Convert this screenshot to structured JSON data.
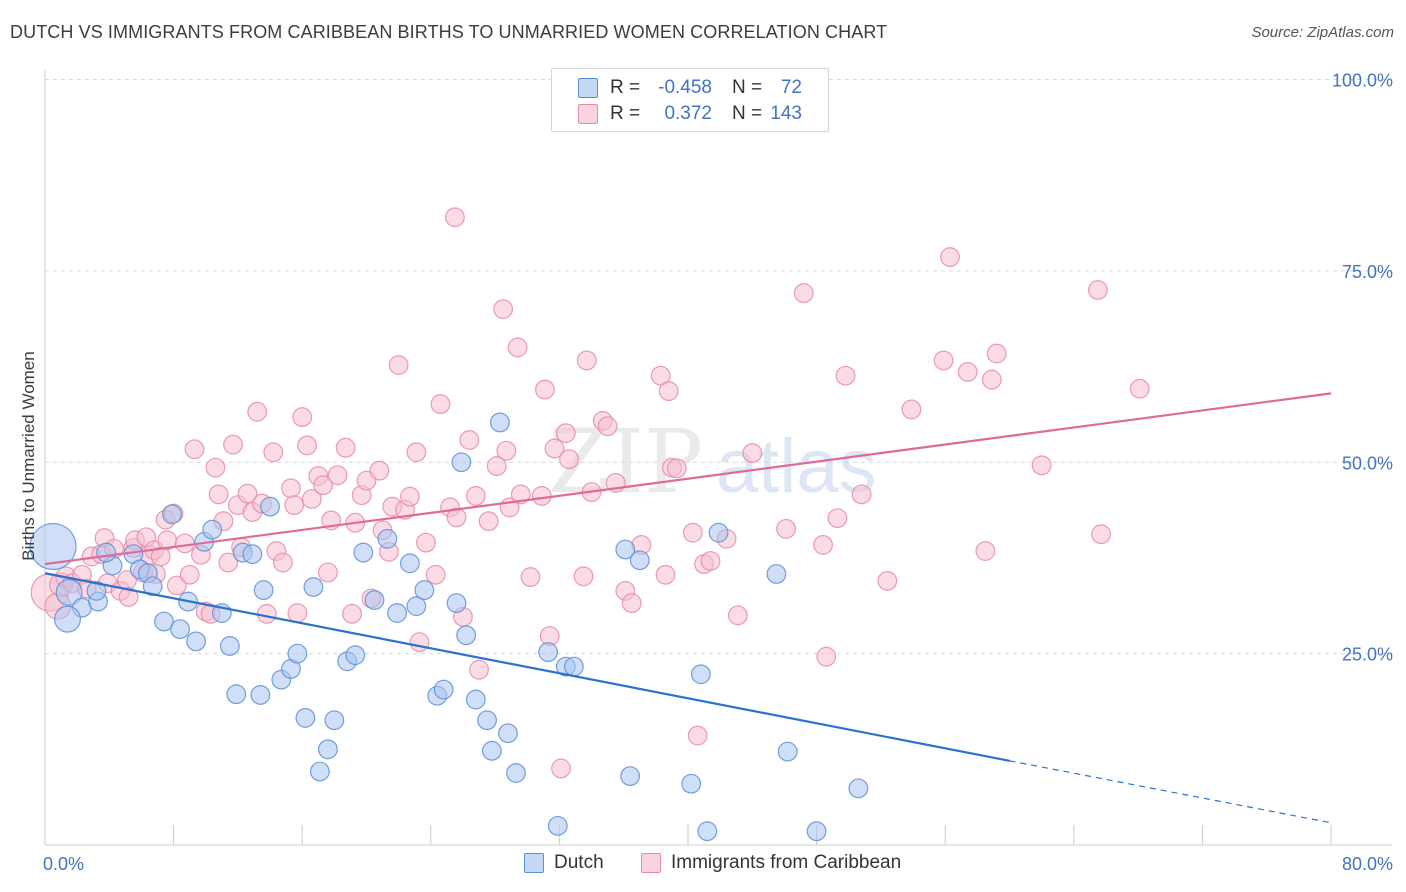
{
  "header": {
    "title": "DUTCH VS IMMIGRANTS FROM CARIBBEAN BIRTHS TO UNMARRIED WOMEN CORRELATION CHART",
    "source": "Source: ZipAtlas.com"
  },
  "legend": {
    "rows": [
      {
        "r_label": "R =",
        "r_value": "-0.458",
        "n_label": "N =",
        "n_value": "72"
      },
      {
        "r_label": "R =",
        "r_value": "0.372",
        "n_label": "N =",
        "n_value": "143"
      }
    ]
  },
  "bottom_legend": {
    "dutch": "Dutch",
    "caribbean": "Immigrants from Caribbean"
  },
  "watermark": {
    "zip": "ZIP",
    "atlas": "atlas"
  },
  "colors": {
    "dutch_fill": "#a9c4f0",
    "dutch_stroke": "#5b8fd6",
    "dutch_line": "#2a72d0",
    "carib_fill": "#f7c0d0",
    "carib_stroke": "#e889a8",
    "carib_line": "#e0699a",
    "axis_text": "#4472c4",
    "grid": "#d9d9d9"
  },
  "chart_data": {
    "type": "scatter",
    "title": "DUTCH VS IMMIGRANTS FROM CARIBBEAN BIRTHS TO UNMARRIED WOMEN CORRELATION CHART",
    "xlabel": "",
    "ylabel": "Births to Unmarried Women",
    "xlim": [
      0,
      80
    ],
    "ylim": [
      0,
      105
    ],
    "x_tick_labels": [
      "0.0%",
      "80.0%"
    ],
    "y_ticks": [
      25,
      50,
      75,
      100
    ],
    "y_tick_labels": [
      "25.0%",
      "50.0%",
      "75.0%",
      "100.0%"
    ],
    "grid": true,
    "series": [
      {
        "name": "Dutch",
        "r": -0.458,
        "n": 72,
        "trend": {
          "x0": 0,
          "y0": 35.5,
          "x1": 60,
          "y1": 11,
          "dash_to_x": 80,
          "dash_to_y": 2.9
        },
        "points": [
          [
            0.5,
            39,
            3.2
          ],
          [
            1.5,
            33,
            1.8
          ],
          [
            2.3,
            31,
            1.3
          ],
          [
            1.4,
            29.5,
            1.8
          ],
          [
            3.3,
            31.8,
            1.3
          ],
          [
            3.2,
            33.2,
            1.3
          ],
          [
            4.2,
            36.5,
            1.3
          ],
          [
            3.8,
            38.2,
            1.3
          ],
          [
            5.5,
            38,
            1.3
          ],
          [
            5.9,
            36,
            1.3
          ],
          [
            6.4,
            35.5,
            1.3
          ],
          [
            6.7,
            33.8,
            1.3
          ],
          [
            7.4,
            29.2,
            1.3
          ],
          [
            7.9,
            43.2,
            1.3
          ],
          [
            8.4,
            28.2,
            1.3
          ],
          [
            8.9,
            31.8,
            1.3
          ],
          [
            9.4,
            26.6,
            1.3
          ],
          [
            9.9,
            39.6,
            1.3
          ],
          [
            10.4,
            41.2,
            1.3
          ],
          [
            11.0,
            30.3,
            1.3
          ],
          [
            11.5,
            26,
            1.3
          ],
          [
            11.9,
            19.7,
            1.3
          ],
          [
            12.3,
            38.2,
            1.3
          ],
          [
            12.9,
            38,
            1.3
          ],
          [
            13.4,
            19.6,
            1.3
          ],
          [
            13.6,
            33.3,
            1.3
          ],
          [
            14.0,
            44.2,
            1.3
          ],
          [
            14.7,
            21.6,
            1.3
          ],
          [
            15.3,
            23,
            1.3
          ],
          [
            15.7,
            25,
            1.3
          ],
          [
            16.2,
            16.6,
            1.3
          ],
          [
            16.7,
            33.7,
            1.3
          ],
          [
            17.1,
            9.6,
            1.3
          ],
          [
            17.6,
            12.5,
            1.3
          ],
          [
            18.0,
            16.3,
            1.3
          ],
          [
            18.8,
            24,
            1.3
          ],
          [
            19.3,
            24.8,
            1.3
          ],
          [
            19.8,
            38.2,
            1.3
          ],
          [
            20.5,
            32,
            1.3
          ],
          [
            21.3,
            40,
            1.3
          ],
          [
            21.9,
            30.3,
            1.3
          ],
          [
            22.7,
            36.8,
            1.3
          ],
          [
            23.1,
            31.2,
            1.3
          ],
          [
            23.6,
            33.3,
            1.3
          ],
          [
            24.4,
            19.5,
            1.3
          ],
          [
            24.8,
            20.3,
            1.3
          ],
          [
            25.6,
            31.6,
            1.3
          ],
          [
            25.9,
            50,
            1.3
          ],
          [
            26.2,
            27.4,
            1.3
          ],
          [
            26.8,
            19,
            1.3
          ],
          [
            27.5,
            16.3,
            1.3
          ],
          [
            27.8,
            12.3,
            1.3
          ],
          [
            28.3,
            55.2,
            1.3
          ],
          [
            28.8,
            14.6,
            1.3
          ],
          [
            29.3,
            9.4,
            1.3
          ],
          [
            31.3,
            25.2,
            1.3
          ],
          [
            31.9,
            2.5,
            1.3
          ],
          [
            32.4,
            23.3,
            1.3
          ],
          [
            32.9,
            23.3,
            1.3
          ],
          [
            36.1,
            38.6,
            1.3
          ],
          [
            36.4,
            9,
            1.3
          ],
          [
            37.0,
            37.2,
            1.3
          ],
          [
            40.2,
            8,
            1.3
          ],
          [
            40.8,
            22.3,
            1.3
          ],
          [
            41.2,
            1.8,
            1.3
          ],
          [
            41.9,
            40.8,
            1.3
          ],
          [
            45.5,
            35.4,
            1.3
          ],
          [
            46.2,
            12.2,
            1.3
          ],
          [
            48.0,
            1.8,
            1.3
          ],
          [
            50.6,
            7.4,
            1.3
          ]
        ]
      },
      {
        "name": "Immigrants from Caribbean",
        "r": 0.372,
        "n": 143,
        "trend": {
          "x0": 0,
          "y0": 36.7,
          "x1": 80,
          "y1": 59
        },
        "points": [
          [
            0.3,
            33,
            2.6
          ],
          [
            0.8,
            31.2,
            1.8
          ],
          [
            1.0,
            34,
            1.6
          ],
          [
            1.3,
            35,
            1.4
          ],
          [
            1.7,
            34.2,
            1.3
          ],
          [
            2.3,
            35.3,
            1.3
          ],
          [
            2.6,
            33.5,
            1.3
          ],
          [
            2.9,
            37.7,
            1.3
          ],
          [
            3.5,
            38,
            1.3
          ],
          [
            3.7,
            40.1,
            1.3
          ],
          [
            3.9,
            34.2,
            1.3
          ],
          [
            4.3,
            38.7,
            1.3
          ],
          [
            4.7,
            33.2,
            1.3
          ],
          [
            5.1,
            34.6,
            1.3
          ],
          [
            5.2,
            32.4,
            1.3
          ],
          [
            5.5,
            38.8,
            1.3
          ],
          [
            5.6,
            39.8,
            1.3
          ],
          [
            6.1,
            35.6,
            1.3
          ],
          [
            6.3,
            40.2,
            1.3
          ],
          [
            6.5,
            37.9,
            1.3
          ],
          [
            6.8,
            38.5,
            1.3
          ],
          [
            6.9,
            35.4,
            1.3
          ],
          [
            7.2,
            37.7,
            1.3
          ],
          [
            7.5,
            42.5,
            1.3
          ],
          [
            7.6,
            39.8,
            1.3
          ],
          [
            8.0,
            43.3,
            1.3
          ],
          [
            8.2,
            33.9,
            1.3
          ],
          [
            8.7,
            39.4,
            1.3
          ],
          [
            9.0,
            35.3,
            1.3
          ],
          [
            9.3,
            51.7,
            1.3
          ],
          [
            9.7,
            37.9,
            1.3
          ],
          [
            10.0,
            30.5,
            1.3
          ],
          [
            10.3,
            30.2,
            1.3
          ],
          [
            10.6,
            49.3,
            1.3
          ],
          [
            10.8,
            45.8,
            1.3
          ],
          [
            11.1,
            42.3,
            1.3
          ],
          [
            11.4,
            36.9,
            1.3
          ],
          [
            11.7,
            52.3,
            1.3
          ],
          [
            12.0,
            44.4,
            1.3
          ],
          [
            12.2,
            38.9,
            1.3
          ],
          [
            12.6,
            45.9,
            1.3
          ],
          [
            12.9,
            43.5,
            1.3
          ],
          [
            13.2,
            56.6,
            1.3
          ],
          [
            13.5,
            44.6,
            1.3
          ],
          [
            13.8,
            30.2,
            1.3
          ],
          [
            14.2,
            51.3,
            1.3
          ],
          [
            14.4,
            38.4,
            1.3
          ],
          [
            14.8,
            36.9,
            1.3
          ],
          [
            15.3,
            46.6,
            1.3
          ],
          [
            15.5,
            44.4,
            1.3
          ],
          [
            15.7,
            30.3,
            1.3
          ],
          [
            16.0,
            55.9,
            1.3
          ],
          [
            16.3,
            52.2,
            1.3
          ],
          [
            16.6,
            45.2,
            1.3
          ],
          [
            17.0,
            48.2,
            1.3
          ],
          [
            17.3,
            47,
            1.3
          ],
          [
            17.6,
            35.6,
            1.3
          ],
          [
            17.8,
            42.4,
            1.3
          ],
          [
            18.2,
            48.3,
            1.3
          ],
          [
            18.7,
            51.9,
            1.3
          ],
          [
            19.1,
            30.2,
            1.3
          ],
          [
            19.3,
            42.1,
            1.3
          ],
          [
            19.7,
            45.7,
            1.3
          ],
          [
            20.0,
            47.6,
            1.3
          ],
          [
            20.3,
            32.2,
            1.3
          ],
          [
            20.8,
            48.9,
            1.3
          ],
          [
            21.0,
            41.1,
            1.3
          ],
          [
            21.4,
            38.3,
            1.3
          ],
          [
            21.6,
            44.2,
            1.3
          ],
          [
            22.0,
            62.7,
            1.3
          ],
          [
            22.4,
            43.8,
            1.3
          ],
          [
            22.7,
            45.5,
            1.3
          ],
          [
            23.1,
            51.3,
            1.3
          ],
          [
            23.3,
            26.5,
            1.3
          ],
          [
            23.7,
            39.5,
            1.3
          ],
          [
            24.3,
            35.3,
            1.3
          ],
          [
            24.6,
            57.6,
            1.3
          ],
          [
            25.2,
            44.1,
            1.3
          ],
          [
            25.5,
            82,
            1.3
          ],
          [
            25.6,
            42.8,
            1.3
          ],
          [
            26.0,
            29.8,
            1.3
          ],
          [
            26.4,
            52.9,
            1.3
          ],
          [
            26.8,
            45.6,
            1.3
          ],
          [
            27.0,
            22.9,
            1.3
          ],
          [
            27.6,
            42.3,
            1.3
          ],
          [
            28.1,
            49.5,
            1.3
          ],
          [
            28.5,
            70,
            1.3
          ],
          [
            28.7,
            51.5,
            1.3
          ],
          [
            28.9,
            44.1,
            1.3
          ],
          [
            29.4,
            65,
            1.3
          ],
          [
            29.6,
            45.8,
            1.3
          ],
          [
            30.2,
            35,
            1.3
          ],
          [
            30.9,
            45.6,
            1.3
          ],
          [
            31.1,
            59.5,
            1.3
          ],
          [
            31.4,
            27.3,
            1.3
          ],
          [
            31.7,
            51.8,
            1.3
          ],
          [
            32.1,
            10,
            1.3
          ],
          [
            32.4,
            53.8,
            1.3
          ],
          [
            32.6,
            50.4,
            1.3
          ],
          [
            33.5,
            35.1,
            1.3
          ],
          [
            33.7,
            63.3,
            1.3
          ],
          [
            34.0,
            46.1,
            1.3
          ],
          [
            34.7,
            55.4,
            1.3
          ],
          [
            35.0,
            54.7,
            1.3
          ],
          [
            35.5,
            47.3,
            1.3
          ],
          [
            36.1,
            33.2,
            1.3
          ],
          [
            36.5,
            31.6,
            1.3
          ],
          [
            37.1,
            39.2,
            1.3
          ],
          [
            38.3,
            61.3,
            1.3
          ],
          [
            38.6,
            35.3,
            1.3
          ],
          [
            38.8,
            59.3,
            1.3
          ],
          [
            39.0,
            49.3,
            1.3
          ],
          [
            39.3,
            49.2,
            1.3
          ],
          [
            40.3,
            40.8,
            1.3
          ],
          [
            40.6,
            14.3,
            1.3
          ],
          [
            41.0,
            36.7,
            1.3
          ],
          [
            41.4,
            37.1,
            1.3
          ],
          [
            42.4,
            40,
            1.3
          ],
          [
            43.1,
            30,
            1.3
          ],
          [
            44.0,
            51.2,
            1.3
          ],
          [
            46.1,
            41.3,
            1.3
          ],
          [
            47.2,
            72.1,
            1.3
          ],
          [
            48.4,
            39.2,
            1.3
          ],
          [
            48.6,
            24.6,
            1.3
          ],
          [
            49.3,
            42.7,
            1.3
          ],
          [
            49.8,
            61.3,
            1.3
          ],
          [
            50.8,
            45.8,
            1.3
          ],
          [
            52.4,
            34.5,
            1.3
          ],
          [
            53.9,
            56.9,
            1.3
          ],
          [
            55.9,
            63.3,
            1.3
          ],
          [
            56.3,
            76.8,
            1.3
          ],
          [
            57.4,
            61.8,
            1.3
          ],
          [
            58.5,
            38.4,
            1.3
          ],
          [
            58.9,
            60.8,
            1.3
          ],
          [
            59.2,
            64.2,
            1.3
          ],
          [
            62.0,
            49.6,
            1.3
          ],
          [
            65.5,
            72.5,
            1.3
          ],
          [
            65.7,
            40.6,
            1.3
          ],
          [
            68.1,
            59.6,
            1.3
          ]
        ]
      }
    ]
  }
}
